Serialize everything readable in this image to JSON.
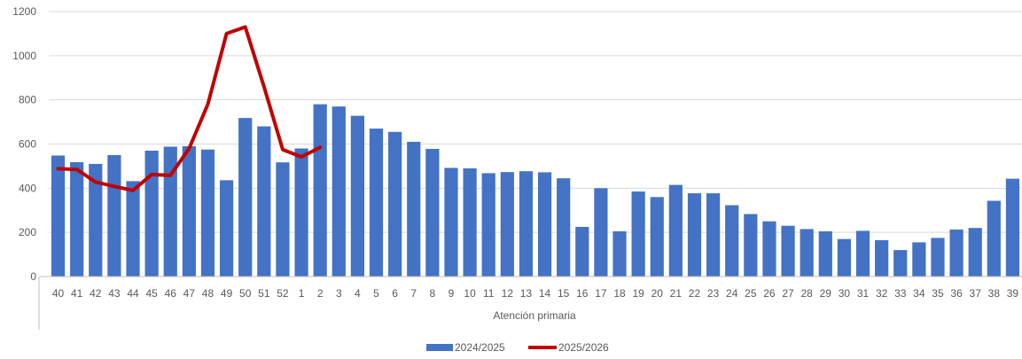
{
  "chart_data": {
    "type": "bar",
    "title": "",
    "xlabel": "Atención primaria",
    "ylabel": "",
    "ylim": [
      0,
      1200
    ],
    "yticks": [
      0,
      200,
      400,
      600,
      800,
      1000,
      1200
    ],
    "grid": "horizontal",
    "legend_position": "bottom",
    "categories": [
      "40",
      "41",
      "42",
      "43",
      "44",
      "45",
      "46",
      "47",
      "48",
      "49",
      "50",
      "51",
      "52",
      "1",
      "2",
      "3",
      "4",
      "5",
      "6",
      "7",
      "8",
      "9",
      "10",
      "11",
      "12",
      "13",
      "14",
      "15",
      "16",
      "17",
      "18",
      "19",
      "20",
      "21",
      "22",
      "23",
      "24",
      "25",
      "26",
      "27",
      "28",
      "29",
      "30",
      "31",
      "32",
      "33",
      "34",
      "35",
      "36",
      "37",
      "38",
      "39"
    ],
    "series": [
      {
        "name": "2024/2025",
        "type": "bar",
        "color": "#4472c4",
        "values": [
          548,
          518,
          510,
          550,
          432,
          570,
          588,
          590,
          575,
          436,
          718,
          680,
          517,
          580,
          780,
          770,
          728,
          670,
          655,
          610,
          578,
          492,
          490,
          468,
          473,
          477,
          472,
          445,
          225,
          400,
          205,
          385,
          360,
          415,
          377,
          377,
          323,
          283,
          250,
          230,
          215,
          205,
          170,
          207,
          165,
          120,
          155,
          175,
          213,
          220,
          343,
          443
        ]
      },
      {
        "name": "2025/2026",
        "type": "line",
        "color": "#c00000",
        "values": [
          488,
          485,
          428,
          408,
          390,
          462,
          458,
          580,
          780,
          1100,
          1130,
          860,
          575,
          542,
          585,
          null,
          null,
          null,
          null,
          null,
          null,
          null,
          null,
          null,
          null,
          null,
          null,
          null,
          null,
          null,
          null,
          null,
          null,
          null,
          null,
          null,
          null,
          null,
          null,
          null,
          null,
          null,
          null,
          null,
          null,
          null,
          null,
          null,
          null,
          null,
          null,
          null
        ]
      }
    ]
  }
}
